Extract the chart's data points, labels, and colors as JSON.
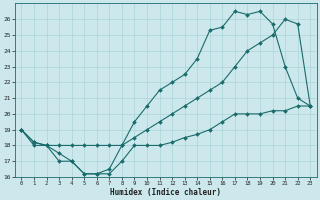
{
  "xlabel": "Humidex (Indice chaleur)",
  "bg_color": "#cce8ec",
  "grid_color": "#b0d8dc",
  "line_color": "#1a6b6b",
  "xlim": [
    -0.5,
    23.5
  ],
  "ylim": [
    16,
    27
  ],
  "xticks": [
    0,
    1,
    2,
    3,
    4,
    5,
    6,
    7,
    8,
    9,
    10,
    11,
    12,
    13,
    14,
    15,
    16,
    17,
    18,
    19,
    20,
    21,
    22,
    23
  ],
  "yticks": [
    16,
    17,
    18,
    19,
    20,
    21,
    22,
    23,
    24,
    25,
    26
  ],
  "line1_x": [
    0,
    1,
    2,
    3,
    4,
    5,
    6,
    7,
    8,
    9,
    10,
    11,
    12,
    13,
    14,
    15,
    16,
    17,
    18,
    19,
    20,
    21,
    22,
    23
  ],
  "line1_y": [
    19,
    18,
    18,
    17.5,
    17,
    16.2,
    16.2,
    16.5,
    18,
    19.5,
    20.5,
    21.5,
    22,
    22.5,
    23.5,
    25.3,
    25.5,
    26.5,
    26.3,
    26.5,
    25.7,
    23,
    21,
    20.5
  ],
  "line2_x": [
    0,
    1,
    2,
    3,
    4,
    5,
    6,
    7,
    8,
    9,
    10,
    11,
    12,
    13,
    14,
    15,
    16,
    17,
    18,
    19,
    20,
    21,
    22,
    23
  ],
  "line2_y": [
    19,
    18.2,
    18,
    18,
    18,
    18,
    18,
    18,
    18,
    18.5,
    19,
    19.5,
    20,
    20.5,
    21,
    21.5,
    22,
    23,
    24,
    24.5,
    25,
    26,
    25.7,
    20.5
  ],
  "line3_x": [
    0,
    1,
    2,
    3,
    4,
    5,
    6,
    7,
    8,
    9,
    10,
    11,
    12,
    13,
    14,
    15,
    16,
    17,
    18,
    19,
    20,
    21,
    22,
    23
  ],
  "line3_y": [
    19,
    18.2,
    18,
    17,
    17,
    16.2,
    16.2,
    16.2,
    17,
    18,
    18,
    18,
    18.2,
    18.5,
    18.7,
    19,
    19.5,
    20,
    20,
    20,
    20.2,
    20.2,
    20.5,
    20.5
  ]
}
